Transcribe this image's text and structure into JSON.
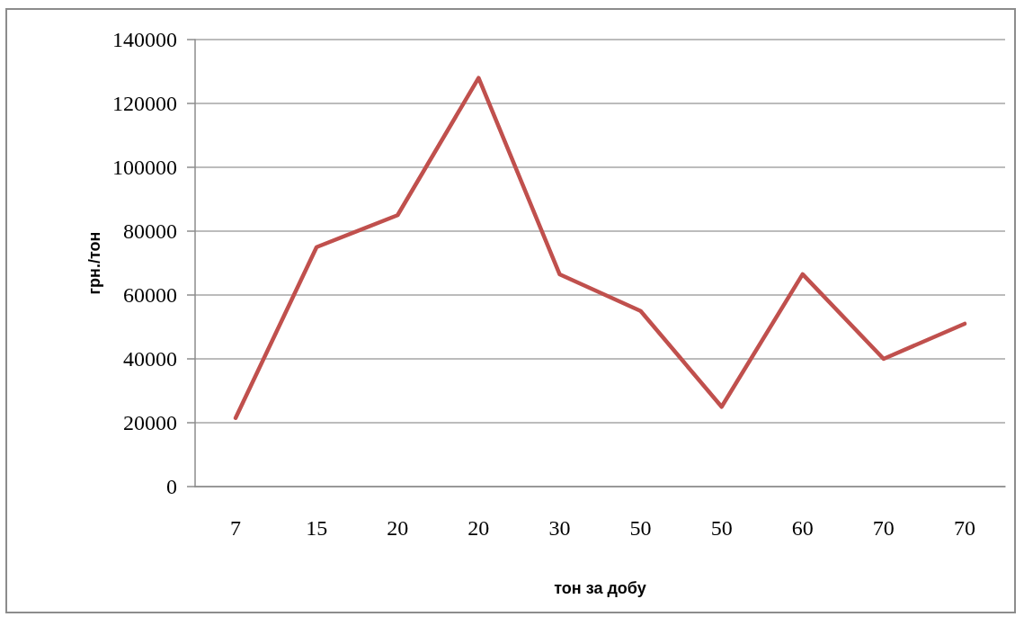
{
  "chart_data": {
    "type": "line",
    "xlabel": "тон за добу",
    "ylabel": "грн./тон",
    "categories": [
      "7",
      "15",
      "20",
      "20",
      "30",
      "50",
      "50",
      "60",
      "70",
      "70"
    ],
    "series": [
      {
        "color": "#c0504d",
        "values": [
          21500,
          75000,
          85000,
          128000,
          66500,
          55000,
          25000,
          66500,
          40000,
          51000
        ]
      }
    ],
    "ylim": [
      0,
      140000
    ],
    "yticks": [
      0,
      20000,
      40000,
      60000,
      80000,
      100000,
      120000,
      140000
    ],
    "grid": "y",
    "marker": "none",
    "line_style": "solid"
  }
}
